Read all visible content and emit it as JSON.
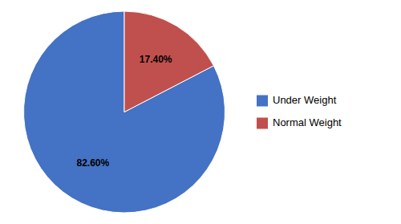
{
  "chart_data": {
    "type": "pie",
    "categories": [
      "Under Weight",
      "Normal Weight"
    ],
    "values": [
      82.6,
      17.4
    ],
    "value_labels": [
      "82.60%",
      "17.40%"
    ],
    "colors": [
      "#4472C4",
      "#C0504D"
    ],
    "data_labels": true,
    "legend": "right"
  }
}
